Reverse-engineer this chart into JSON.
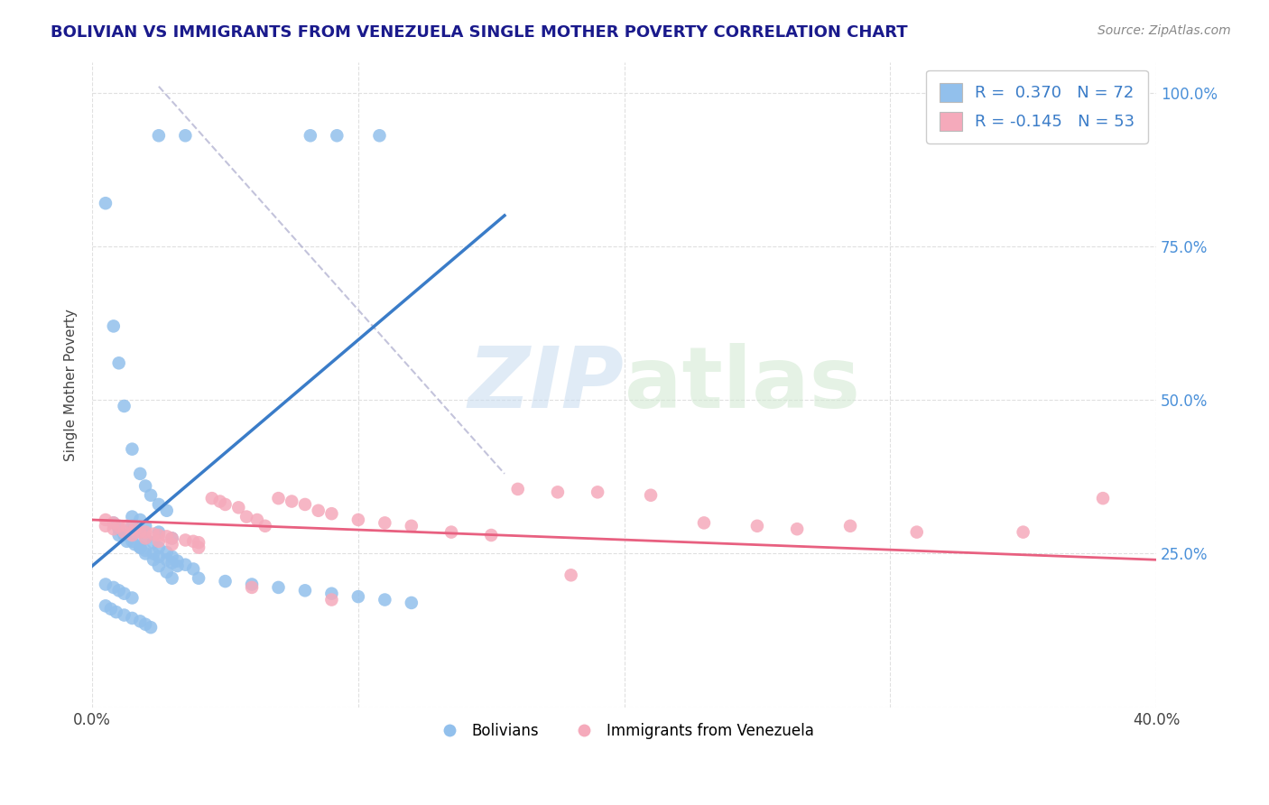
{
  "title": "BOLIVIAN VS IMMIGRANTS FROM VENEZUELA SINGLE MOTHER POVERTY CORRELATION CHART",
  "source": "Source: ZipAtlas.com",
  "ylabel": "Single Mother Poverty",
  "xlim": [
    0.0,
    0.4
  ],
  "ylim": [
    0.0,
    1.05
  ],
  "xticks": [
    0.0,
    0.1,
    0.2,
    0.3,
    0.4
  ],
  "xtick_labels": [
    "0.0%",
    "",
    "",
    "",
    "40.0%"
  ],
  "yticks": [
    0.0,
    0.25,
    0.5,
    0.75,
    1.0
  ],
  "ytick_labels_right": [
    "",
    "25.0%",
    "50.0%",
    "75.0%",
    "100.0%"
  ],
  "blue_R": 0.37,
  "blue_N": 72,
  "pink_R": -0.145,
  "pink_N": 53,
  "blue_color": "#92C0EC",
  "pink_color": "#F5AABB",
  "blue_line_color": "#3A7CC8",
  "pink_line_color": "#E86080",
  "legend_label_blue": "Bolivians",
  "legend_label_pink": "Immigrants from Venezuela",
  "background_color": "#FFFFFF",
  "grid_color": "#DDDDDD",
  "watermark_zip": "ZIP",
  "watermark_atlas": "atlas",
  "title_color": "#1A1A8C",
  "axis_label_color": "#444444",
  "tick_color_y_right": "#4A90D9",
  "tick_color_x": "#444444",
  "legend_text_color": "#3A7CC8",
  "blue_scatter_x": [
    0.025,
    0.035,
    0.082,
    0.092,
    0.108,
    0.005,
    0.008,
    0.01,
    0.012,
    0.015,
    0.018,
    0.02,
    0.022,
    0.025,
    0.028,
    0.01,
    0.013,
    0.016,
    0.018,
    0.02,
    0.023,
    0.025,
    0.028,
    0.03,
    0.032,
    0.015,
    0.018,
    0.02,
    0.023,
    0.025,
    0.028,
    0.03,
    0.032,
    0.035,
    0.038,
    0.008,
    0.01,
    0.012,
    0.015,
    0.018,
    0.02,
    0.023,
    0.025,
    0.028,
    0.03,
    0.005,
    0.008,
    0.01,
    0.012,
    0.015,
    0.005,
    0.007,
    0.009,
    0.012,
    0.015,
    0.018,
    0.02,
    0.022,
    0.04,
    0.05,
    0.06,
    0.07,
    0.08,
    0.09,
    0.1,
    0.11,
    0.12,
    0.015,
    0.018,
    0.02,
    0.025,
    0.03
  ],
  "blue_scatter_y": [
    0.93,
    0.93,
    0.93,
    0.93,
    0.93,
    0.82,
    0.62,
    0.56,
    0.49,
    0.42,
    0.38,
    0.36,
    0.345,
    0.33,
    0.32,
    0.28,
    0.27,
    0.265,
    0.26,
    0.255,
    0.25,
    0.245,
    0.24,
    0.235,
    0.23,
    0.295,
    0.285,
    0.275,
    0.268,
    0.26,
    0.252,
    0.245,
    0.238,
    0.232,
    0.225,
    0.3,
    0.29,
    0.28,
    0.27,
    0.26,
    0.25,
    0.24,
    0.23,
    0.22,
    0.21,
    0.2,
    0.195,
    0.19,
    0.185,
    0.178,
    0.165,
    0.16,
    0.155,
    0.15,
    0.145,
    0.14,
    0.135,
    0.13,
    0.21,
    0.205,
    0.2,
    0.195,
    0.19,
    0.185,
    0.18,
    0.175,
    0.17,
    0.31,
    0.305,
    0.295,
    0.285,
    0.275
  ],
  "pink_scatter_x": [
    0.005,
    0.008,
    0.01,
    0.013,
    0.016,
    0.018,
    0.02,
    0.023,
    0.025,
    0.028,
    0.03,
    0.035,
    0.038,
    0.04,
    0.045,
    0.048,
    0.05,
    0.055,
    0.058,
    0.062,
    0.065,
    0.07,
    0.075,
    0.08,
    0.085,
    0.09,
    0.1,
    0.11,
    0.12,
    0.135,
    0.15,
    0.16,
    0.175,
    0.19,
    0.21,
    0.23,
    0.25,
    0.265,
    0.285,
    0.31,
    0.35,
    0.38,
    0.005,
    0.008,
    0.012,
    0.015,
    0.02,
    0.025,
    0.03,
    0.04,
    0.06,
    0.09,
    0.18
  ],
  "pink_scatter_y": [
    0.305,
    0.3,
    0.295,
    0.295,
    0.29,
    0.285,
    0.285,
    0.282,
    0.28,
    0.278,
    0.275,
    0.272,
    0.27,
    0.268,
    0.34,
    0.335,
    0.33,
    0.325,
    0.31,
    0.305,
    0.295,
    0.34,
    0.335,
    0.33,
    0.32,
    0.315,
    0.305,
    0.3,
    0.295,
    0.285,
    0.28,
    0.355,
    0.35,
    0.35,
    0.345,
    0.3,
    0.295,
    0.29,
    0.295,
    0.285,
    0.285,
    0.34,
    0.295,
    0.29,
    0.285,
    0.28,
    0.275,
    0.27,
    0.265,
    0.26,
    0.195,
    0.175,
    0.215
  ],
  "blue_line_x": [
    0.0,
    0.155
  ],
  "blue_line_y": [
    0.23,
    0.8
  ],
  "pink_line_x": [
    0.0,
    0.4
  ],
  "pink_line_y": [
    0.305,
    0.24
  ],
  "dash_line_x": [
    0.025,
    0.155
  ],
  "dash_line_y": [
    1.01,
    0.38
  ]
}
